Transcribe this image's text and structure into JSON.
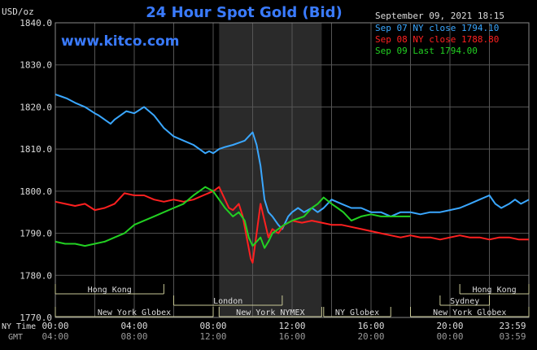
{
  "unit_label": "USD/oz",
  "website": "www.kitco.com",
  "timestamp": "September 09, 2021 18:15",
  "chart_data": {
    "type": "line",
    "title": "24 Hour Spot Gold (Bid)",
    "ylim": [
      1770,
      1840
    ],
    "yticks": [
      "1840.0",
      "1830.0",
      "1820.0",
      "1810.0",
      "1800.0",
      "1790.0",
      "1780.0",
      "1770.0"
    ],
    "x_axis": {
      "row1_label": "NY Time",
      "row2_label": "GMT",
      "ny_ticks": [
        "00:00",
        "04:00",
        "08:00",
        "12:00",
        "16:00",
        "20:00",
        "23:59"
      ],
      "gmt_ticks": [
        "04:00",
        "08:00",
        "12:00",
        "16:00",
        "20:00",
        "00:00",
        "03:59"
      ]
    },
    "series": [
      {
        "name": "Sep 07 NY close 1794.10",
        "color": "#3aa7ff",
        "x": [
          0,
          0.3,
          0.6,
          1,
          1.5,
          2,
          2.2,
          2.5,
          2.8,
          3,
          3.3,
          3.6,
          4,
          4.5,
          5,
          5.5,
          6,
          6.5,
          7,
          7.3,
          7.6,
          7.8,
          8,
          8.3,
          8.6,
          9,
          9.3,
          9.6,
          9.8,
          10,
          10.2,
          10.4,
          10.6,
          10.8,
          11,
          11.3,
          11.5,
          11.8,
          12,
          12.3,
          12.6,
          13,
          13.3,
          13.6,
          14,
          14.5,
          15,
          15.5,
          16,
          16.5,
          17,
          17.5,
          18,
          18.5,
          19,
          19.5,
          20,
          20.5,
          21,
          21.5,
          22,
          22.3,
          22.6,
          23,
          23.3,
          23.6,
          24
        ],
        "y": [
          1823,
          1822.5,
          1822,
          1821,
          1820,
          1818.5,
          1818,
          1817,
          1816,
          1817,
          1818,
          1819,
          1818.5,
          1820,
          1818,
          1815,
          1813,
          1812,
          1811,
          1810,
          1809,
          1809.5,
          1809,
          1810,
          1810.5,
          1811,
          1811.5,
          1812,
          1813,
          1814,
          1811,
          1806,
          1798,
          1795,
          1794,
          1792,
          1791,
          1794,
          1795,
          1796,
          1795,
          1796,
          1795,
          1796,
          1798,
          1797,
          1796,
          1796,
          1795,
          1795,
          1794,
          1795,
          1795,
          1794.5,
          1795,
          1795,
          1795.5,
          1796,
          1797,
          1798,
          1799,
          1797,
          1796,
          1797,
          1798,
          1797,
          1798
        ]
      },
      {
        "name": "Sep 08 NY close 1788.80",
        "color": "#ff2020",
        "x": [
          0,
          0.5,
          1,
          1.5,
          2,
          2.5,
          3,
          3.5,
          4,
          4.5,
          5,
          5.5,
          6,
          6.5,
          7,
          7.5,
          8,
          8.3,
          8.5,
          8.8,
          9,
          9.3,
          9.5,
          9.7,
          9.9,
          10,
          10.2,
          10.4,
          10.6,
          10.8,
          11,
          11.3,
          11.6,
          12,
          12.5,
          13,
          13.5,
          14,
          14.5,
          15,
          15.5,
          16,
          16.5,
          17,
          17.5,
          18,
          18.5,
          19,
          19.5,
          20,
          20.5,
          21,
          21.5,
          22,
          22.5,
          23,
          23.5,
          24
        ],
        "y": [
          1797.5,
          1797,
          1796.5,
          1797,
          1795.5,
          1796,
          1797,
          1799.5,
          1799,
          1799,
          1798,
          1797.5,
          1798,
          1797.5,
          1798,
          1799,
          1800,
          1801,
          1799,
          1796,
          1795.5,
          1797,
          1794,
          1789,
          1784,
          1783,
          1790,
          1797,
          1793,
          1789,
          1791,
          1790,
          1792,
          1793,
          1792.5,
          1793,
          1792.5,
          1792,
          1792,
          1791.5,
          1791,
          1790.5,
          1790,
          1789.5,
          1789,
          1789.5,
          1789,
          1789,
          1788.5,
          1789,
          1789.5,
          1789,
          1789,
          1788.5,
          1789,
          1789,
          1788.5,
          1788.5
        ]
      },
      {
        "name": "Sep 09 Last 1794.00",
        "color": "#22d122",
        "x": [
          0,
          0.5,
          1,
          1.5,
          2,
          2.5,
          3,
          3.5,
          4,
          4.5,
          5,
          5.5,
          6,
          6.5,
          7,
          7.3,
          7.6,
          8,
          8.3,
          8.6,
          9,
          9.3,
          9.6,
          9.8,
          10,
          10.2,
          10.4,
          10.6,
          10.8,
          11,
          11.3,
          11.6,
          12,
          12.3,
          12.6,
          13,
          13.3,
          13.6,
          14,
          14.3,
          14.6,
          15,
          15.5,
          16,
          16.5,
          17,
          17.5,
          18
        ],
        "y": [
          1788,
          1787.5,
          1787.5,
          1787,
          1787.5,
          1788,
          1789,
          1790,
          1792,
          1793,
          1794,
          1795,
          1796,
          1797,
          1799,
          1800,
          1801,
          1800,
          1798,
          1796,
          1794,
          1795,
          1793,
          1789,
          1787,
          1788,
          1789,
          1786.5,
          1788,
          1790,
          1791,
          1792,
          1793,
          1793.5,
          1794,
          1796,
          1797,
          1798.5,
          1797,
          1796,
          1795,
          1793,
          1794,
          1794.5,
          1794,
          1794,
          1794,
          1794
        ]
      }
    ],
    "session_rows": [
      [
        {
          "label": "Hong Kong",
          "start": 0,
          "end": 5.5
        },
        {
          "label": "Hong Kong",
          "start": 20.5,
          "end": 24
        }
      ],
      [
        {
          "label": "London",
          "start": 6,
          "end": 11.5
        },
        {
          "label": "Sydney",
          "start": 19.5,
          "end": 22
        }
      ],
      [
        {
          "label": "New York Globex",
          "start": 0,
          "end": 8
        },
        {
          "label": "New York NYMEX",
          "start": 8.3,
          "end": 13.5
        },
        {
          "label": "NY Globex",
          "start": 13.6,
          "end": 17
        },
        {
          "label": "New York Globex",
          "start": 18,
          "end": 24
        }
      ]
    ]
  }
}
